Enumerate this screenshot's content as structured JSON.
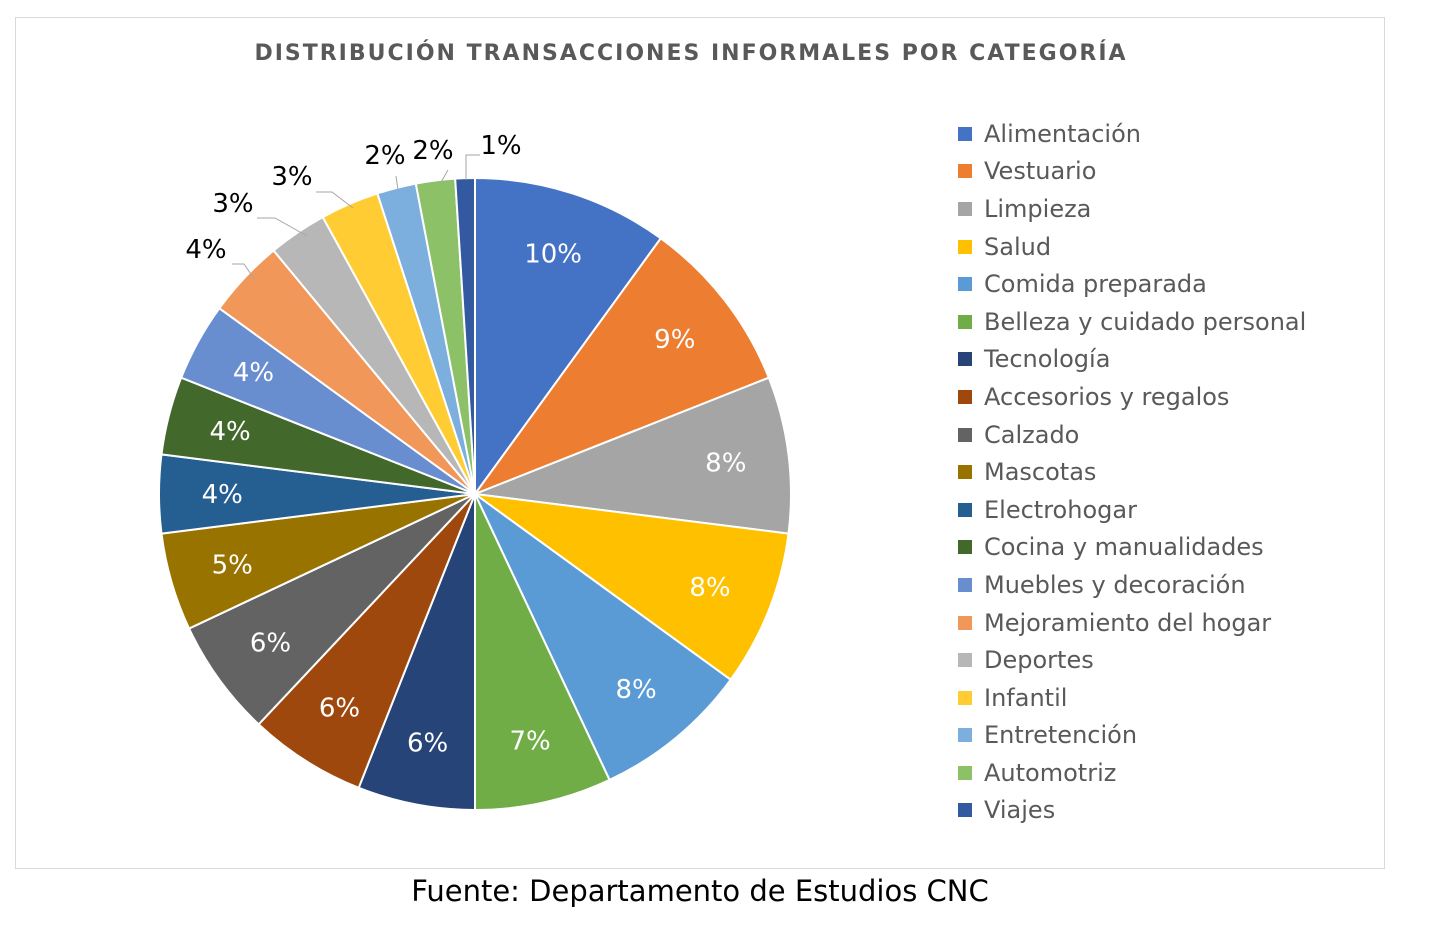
{
  "chart_data": {
    "type": "pie",
    "title": "DISTRIBUCIÓN TRANSACCIONES INFORMALES POR CATEGORÍA",
    "legend_position": "right",
    "slices": [
      {
        "label": "Alimentación",
        "value": 10,
        "display": "10%",
        "color": "#4472C4",
        "label_inside": true
      },
      {
        "label": "Vestuario",
        "value": 9,
        "display": "9%",
        "color": "#ED7D31",
        "label_inside": true
      },
      {
        "label": "Limpieza",
        "value": 8,
        "display": "8%",
        "color": "#A5A5A5",
        "label_inside": true
      },
      {
        "label": "Salud",
        "value": 8,
        "display": "8%",
        "color": "#FFC000",
        "label_inside": true
      },
      {
        "label": "Comida preparada",
        "value": 8,
        "display": "8%",
        "color": "#5B9BD5",
        "label_inside": true
      },
      {
        "label": "Belleza y cuidado personal",
        "value": 7,
        "display": "7%",
        "color": "#70AD47",
        "label_inside": true
      },
      {
        "label": "Tecnología",
        "value": 6,
        "display": "6%",
        "color": "#264478",
        "label_inside": true
      },
      {
        "label": "Accesorios y regalos",
        "value": 6,
        "display": "6%",
        "color": "#9E480E",
        "label_inside": true
      },
      {
        "label": "Calzado",
        "value": 6,
        "display": "6%",
        "color": "#636363",
        "label_inside": true
      },
      {
        "label": "Mascotas",
        "value": 5,
        "display": "5%",
        "color": "#997300",
        "label_inside": true
      },
      {
        "label": "Electrohogar",
        "value": 4,
        "display": "4%",
        "color": "#255E91",
        "label_inside": true
      },
      {
        "label": "Cocina y manualidades",
        "value": 4,
        "display": "4%",
        "color": "#43682B",
        "label_inside": true
      },
      {
        "label": "Muebles y decoración",
        "value": 4,
        "display": "4%",
        "color": "#698ED0",
        "label_inside": true
      },
      {
        "label": "Mejoramiento del hogar",
        "value": 4,
        "display": "4%",
        "color": "#F1975A",
        "label_inside": false
      },
      {
        "label": "Deportes",
        "value": 3,
        "display": "3%",
        "color": "#B7B7B7",
        "label_inside": false
      },
      {
        "label": "Infantil",
        "value": 3,
        "display": "3%",
        "color": "#FFCD33",
        "label_inside": false
      },
      {
        "label": "Entretención",
        "value": 2,
        "display": "2%",
        "color": "#7CAFDD",
        "label_inside": false
      },
      {
        "label": "Automotriz",
        "value": 2,
        "display": "2%",
        "color": "#8CC168",
        "label_inside": false
      },
      {
        "label": "Viajes",
        "value": 1,
        "display": "1%",
        "color": "#335AA1",
        "label_inside": false
      }
    ]
  },
  "source_note": "Fuente: Departamento de Estudios CNC"
}
